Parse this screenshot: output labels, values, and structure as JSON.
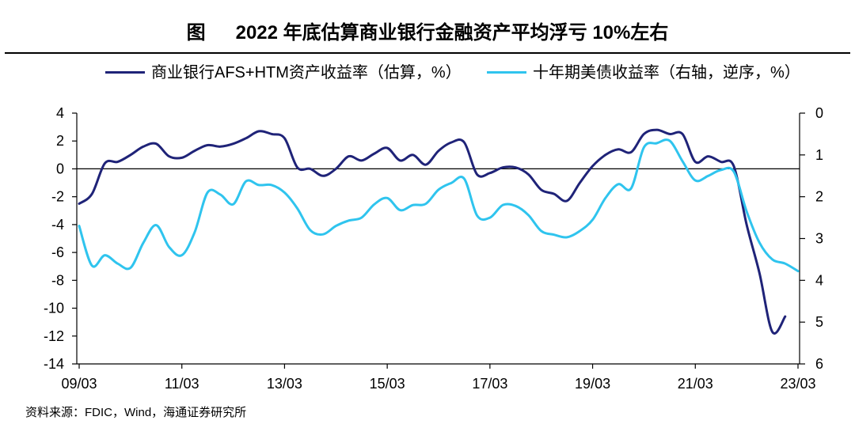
{
  "figure_label": "图",
  "chart_data": {
    "type": "line",
    "title": "2022 年底估算商业银行金融资产平均浮亏 10%左右",
    "legend": "top",
    "grid": false,
    "x_ticks": [
      "09/03",
      "11/03",
      "13/03",
      "15/03",
      "17/03",
      "19/03",
      "21/03",
      "23/03"
    ],
    "y_left": {
      "min": -14,
      "max": 4,
      "ticks": [
        4,
        2,
        0,
        -2,
        -4,
        -6,
        -8,
        -10,
        -12,
        -14
      ]
    },
    "y_right": {
      "min": 0,
      "max": 6,
      "reversed": true,
      "ticks": [
        0,
        1,
        2,
        3,
        4,
        5,
        6
      ]
    },
    "x": [
      "2009-03",
      "2009-06",
      "2009-09",
      "2009-12",
      "2010-03",
      "2010-06",
      "2010-09",
      "2010-12",
      "2011-03",
      "2011-06",
      "2011-09",
      "2011-12",
      "2012-03",
      "2012-06",
      "2012-09",
      "2012-12",
      "2013-03",
      "2013-06",
      "2013-09",
      "2013-12",
      "2014-03",
      "2014-06",
      "2014-09",
      "2014-12",
      "2015-03",
      "2015-06",
      "2015-09",
      "2015-12",
      "2016-03",
      "2016-06",
      "2016-09",
      "2016-12",
      "2017-03",
      "2017-06",
      "2017-09",
      "2017-12",
      "2018-03",
      "2018-06",
      "2018-09",
      "2018-12",
      "2019-03",
      "2019-06",
      "2019-09",
      "2019-12",
      "2020-03",
      "2020-06",
      "2020-09",
      "2020-12",
      "2021-03",
      "2021-06",
      "2021-09",
      "2021-12",
      "2022-03",
      "2022-06",
      "2022-09",
      "2022-12",
      "2023-03"
    ],
    "series": [
      {
        "name": "商业银行AFS+HTM资产收益率（估算，%）",
        "axis": "left",
        "color": "#1f2378",
        "values": [
          -2.5,
          -1.8,
          0.4,
          0.5,
          1.0,
          1.6,
          1.8,
          0.9,
          0.8,
          1.3,
          1.7,
          1.6,
          1.8,
          2.2,
          2.7,
          2.5,
          2.2,
          0.1,
          0.0,
          -0.5,
          0.0,
          0.9,
          0.6,
          1.1,
          1.5,
          0.6,
          1.0,
          0.3,
          1.3,
          1.9,
          1.9,
          -0.4,
          -0.3,
          0.1,
          0.1,
          -0.4,
          -1.5,
          -1.8,
          -2.3,
          -1.0,
          0.2,
          1.0,
          1.4,
          1.2,
          2.5,
          2.8,
          2.5,
          2.5,
          0.5,
          0.9,
          0.5,
          0.2,
          -4.0,
          -7.5,
          -11.7,
          -10.6,
          null
        ]
      },
      {
        "name": "十年期美债收益率（右轴，逆序，%）",
        "axis": "right",
        "color": "#2fc4ee",
        "values": [
          2.7,
          3.65,
          3.4,
          3.6,
          3.7,
          3.1,
          2.68,
          3.2,
          3.4,
          2.85,
          1.9,
          1.95,
          2.18,
          1.63,
          1.72,
          1.72,
          1.9,
          2.28,
          2.8,
          2.9,
          2.7,
          2.57,
          2.5,
          2.18,
          2.03,
          2.32,
          2.2,
          2.17,
          1.83,
          1.67,
          1.57,
          2.45,
          2.5,
          2.2,
          2.22,
          2.44,
          2.82,
          2.91,
          2.97,
          2.82,
          2.55,
          2.03,
          1.7,
          1.8,
          0.82,
          0.72,
          0.66,
          1.15,
          1.61,
          1.5,
          1.36,
          1.4,
          2.35,
          3.1,
          3.5,
          3.6,
          3.78
        ]
      }
    ]
  },
  "source": "资料来源：FDIC，Wind，海通证券研究所"
}
